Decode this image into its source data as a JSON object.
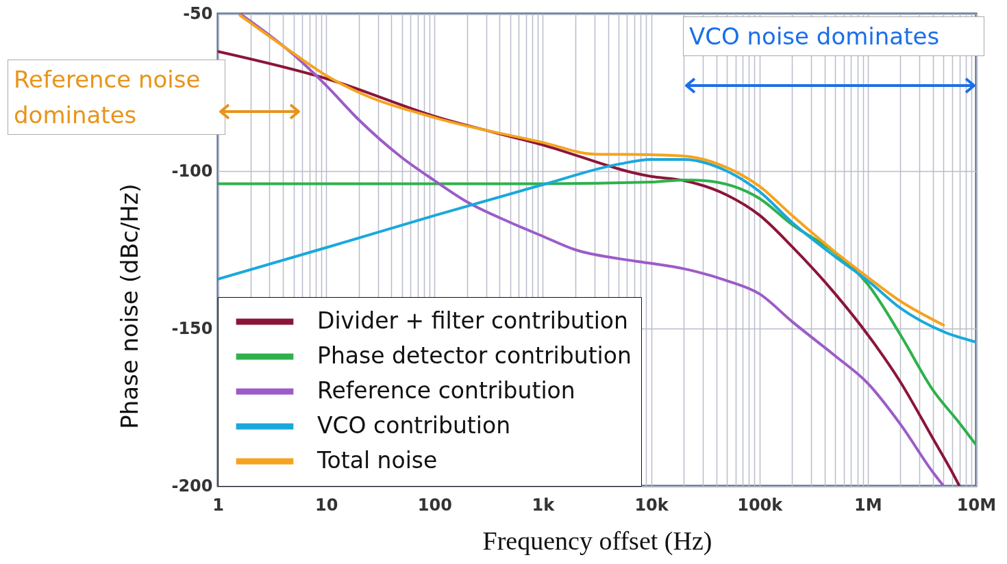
{
  "chart_data": {
    "type": "line",
    "xlabel": "Frequency offset (Hz)",
    "ylabel": "Phase noise (dBc/Hz)",
    "log": "x",
    "grid": true,
    "legend": "bottom left",
    "line_style": "solid",
    "xlim": [
      1,
      10000000
    ],
    "ylim": [
      -200,
      -50
    ],
    "yticks": [
      -200,
      -150,
      -100,
      -50
    ],
    "xticks": [
      {
        "value": 1,
        "label": "1"
      },
      {
        "value": 2,
        "label": null
      },
      {
        "value": 3,
        "label": null
      },
      {
        "value": 4,
        "label": null
      },
      {
        "value": 5,
        "label": null
      },
      {
        "value": 6,
        "label": null
      },
      {
        "value": 7,
        "label": null
      },
      {
        "value": 8,
        "label": null
      },
      {
        "value": 9,
        "label": null
      },
      {
        "value": 10,
        "label": "10"
      },
      {
        "value": 20,
        "label": null
      },
      {
        "value": 30,
        "label": null
      },
      {
        "value": 40,
        "label": null
      },
      {
        "value": 50,
        "label": null
      },
      {
        "value": 60,
        "label": null
      },
      {
        "value": 70,
        "label": null
      },
      {
        "value": 80,
        "label": null
      },
      {
        "value": 90,
        "label": null
      },
      {
        "value": 100,
        "label": "100"
      },
      {
        "value": 200,
        "label": null
      },
      {
        "value": 300,
        "label": null
      },
      {
        "value": 400,
        "label": null
      },
      {
        "value": 500,
        "label": null
      },
      {
        "value": 600,
        "label": null
      },
      {
        "value": 700,
        "label": null
      },
      {
        "value": 800,
        "label": null
      },
      {
        "value": 900,
        "label": null
      },
      {
        "value": 1000,
        "label": "1k"
      },
      {
        "value": 2000,
        "label": null
      },
      {
        "value": 3000,
        "label": null
      },
      {
        "value": 4000,
        "label": null
      },
      {
        "value": 5000,
        "label": null
      },
      {
        "value": 6000,
        "label": null
      },
      {
        "value": 7000,
        "label": null
      },
      {
        "value": 8000,
        "label": null
      },
      {
        "value": 9000,
        "label": null
      },
      {
        "value": 10000,
        "label": "10k"
      },
      {
        "value": 20000,
        "label": null
      },
      {
        "value": 30000,
        "label": null
      },
      {
        "value": 40000,
        "label": null
      },
      {
        "value": 50000,
        "label": null
      },
      {
        "value": 60000,
        "label": null
      },
      {
        "value": 70000,
        "label": null
      },
      {
        "value": 80000,
        "label": null
      },
      {
        "value": 90000,
        "label": null
      },
      {
        "value": 100000,
        "label": "100k"
      },
      {
        "value": 200000,
        "label": null
      },
      {
        "value": 300000,
        "label": null
      },
      {
        "value": 400000,
        "label": null
      },
      {
        "value": 500000,
        "label": null
      },
      {
        "value": 600000,
        "label": null
      },
      {
        "value": 700000,
        "label": null
      },
      {
        "value": 800000,
        "label": null
      },
      {
        "value": 900000,
        "label": null
      },
      {
        "value": 1000000,
        "label": "1M"
      },
      {
        "value": 2000000,
        "label": null
      },
      {
        "value": 3000000,
        "label": null
      },
      {
        "value": 4000000,
        "label": null
      },
      {
        "value": 5000000,
        "label": null
      },
      {
        "value": 6000000,
        "label": null
      },
      {
        "value": 7000000,
        "label": null
      },
      {
        "value": 8000000,
        "label": null
      },
      {
        "value": 9000000,
        "label": null
      },
      {
        "value": 10000000,
        "label": "10M"
      }
    ],
    "annotations": [
      "Reference noise dominates",
      "VCO noise dominates"
    ],
    "series": [
      {
        "name": "Divider + filter contribution",
        "color": "#8b1538",
        "x": [
          1,
          10,
          100,
          1000,
          10000,
          20000,
          50000,
          100000,
          200000,
          500000,
          1000000,
          2000000,
          4000000,
          6000000,
          7000000
        ],
        "values": [
          -62,
          -70.6,
          -82.6,
          -91.7,
          -101.7,
          -103,
          -107.6,
          -114,
          -124,
          -139,
          -152,
          -167,
          -185,
          -195.6,
          -200
        ]
      },
      {
        "name": "Phase detector contribution",
        "color": "#2eb14b",
        "x": [
          1,
          10,
          100,
          1000,
          10000,
          20000,
          30000,
          100000,
          200000,
          500000,
          1000000,
          2000000,
          4000000,
          7000000,
          10000000
        ],
        "values": [
          -104,
          -104,
          -104,
          -104,
          -103.5,
          -102.8,
          -103,
          -108.7,
          -117,
          -126,
          -136,
          -152,
          -169.6,
          -180,
          -187
        ]
      },
      {
        "name": "Reference contribution",
        "color": "#9b5cc8",
        "x": [
          1.6,
          5,
          10,
          20,
          50,
          100,
          200,
          500,
          1000,
          2000,
          5000,
          10000,
          20000,
          50000,
          100000,
          200000,
          500000,
          1000000,
          2000000,
          4000000,
          5000000
        ],
        "values": [
          -50,
          -63,
          -72.8,
          -83.7,
          -95.7,
          -103,
          -109.8,
          -116.3,
          -120.7,
          -125,
          -127.8,
          -129.3,
          -131,
          -134.8,
          -139,
          -147.8,
          -158.7,
          -167.4,
          -180.4,
          -195.7,
          -200
        ]
      },
      {
        "name": "VCO contribution",
        "color": "#1aa8dc",
        "x": [
          1,
          10,
          100,
          1000,
          5000,
          10000,
          20000,
          50000,
          100000,
          200000,
          500000,
          1000000,
          2000000,
          5000000,
          10000000
        ],
        "values": [
          -134.3,
          -124.3,
          -114.1,
          -104.3,
          -97.8,
          -96.3,
          -96.3,
          -100,
          -106.5,
          -116.3,
          -127.2,
          -134.8,
          -143.5,
          -151,
          -154.3
        ]
      },
      {
        "name": "Total noise",
        "color": "#f5a31f",
        "x": [
          1.6,
          5,
          10,
          20,
          100,
          1000,
          3000,
          10000,
          20000,
          50000,
          100000,
          200000,
          500000,
          1000000,
          2000000,
          5000000
        ],
        "values": [
          -50.5,
          -62.6,
          -69.6,
          -75,
          -83,
          -90.9,
          -94.6,
          -94.8,
          -95.2,
          -98.9,
          -104.8,
          -114.1,
          -125.7,
          -133.7,
          -141.3,
          -148.9
        ]
      }
    ]
  }
}
